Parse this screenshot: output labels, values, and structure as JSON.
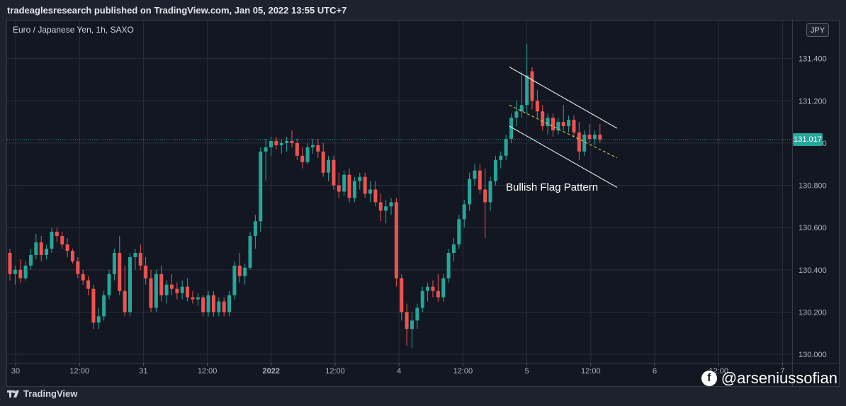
{
  "header": {
    "text": "tradeaglesresearch published on TradingView.com, Jan 05, 2022 13:55 UTC+7"
  },
  "symbol": "Euro / Japanese Yen, 1h, SAXO",
  "currency": "JPY",
  "current_price": "131.017",
  "footer": {
    "brand": "TradingView",
    "credit": "@arseniussofian"
  },
  "colors": {
    "up": "#26a69a",
    "down": "#ef5350",
    "grid": "#2a2e39",
    "pattern": "#ffffff",
    "midline": "#e8d44d",
    "price_line": "#26a69a"
  },
  "chart_data": {
    "type": "candlestick",
    "title": "Euro / Japanese Yen, 1h, SAXO",
    "x_tick_labels": [
      "30",
      "12:00",
      "31",
      "12:00",
      "2022",
      "12:00",
      "4",
      "12:00",
      "5",
      "12:00",
      "6",
      "12:00",
      "7"
    ],
    "y_tick_labels": [
      "130.000",
      "130.200",
      "130.400",
      "130.600",
      "130.800",
      "131.000",
      "131.200",
      "131.400"
    ],
    "ylim": [
      129.96,
      131.58
    ],
    "last_price": 131.017,
    "annotation": "Bullish Flag Pattern",
    "flag_channel": {
      "upper": [
        [
          131.36,
          131.07
        ]
      ],
      "lower": [
        [
          131.08,
          130.79
        ]
      ],
      "mid": [
        [
          131.18,
          130.93
        ]
      ]
    },
    "candles": [
      [
        130.48,
        130.5,
        130.35,
        130.38
      ],
      [
        130.38,
        130.42,
        130.33,
        130.4
      ],
      [
        130.4,
        130.45,
        130.34,
        130.36
      ],
      [
        130.36,
        130.44,
        130.35,
        130.42
      ],
      [
        130.42,
        130.5,
        130.4,
        130.47
      ],
      [
        130.47,
        130.57,
        130.45,
        130.53
      ],
      [
        130.53,
        130.56,
        130.44,
        130.47
      ],
      [
        130.47,
        130.52,
        130.45,
        130.5
      ],
      [
        130.5,
        130.6,
        130.48,
        130.58
      ],
      [
        130.58,
        130.6,
        130.53,
        130.56
      ],
      [
        130.56,
        130.58,
        130.5,
        130.52
      ],
      [
        130.52,
        130.55,
        130.46,
        130.49
      ],
      [
        130.49,
        130.5,
        130.43,
        130.44
      ],
      [
        130.44,
        130.46,
        130.36,
        130.38
      ],
      [
        130.38,
        130.4,
        130.33,
        130.35
      ],
      [
        130.35,
        130.37,
        130.28,
        130.31
      ],
      [
        130.31,
        130.33,
        130.12,
        130.15
      ],
      [
        130.15,
        130.22,
        130.12,
        130.18
      ],
      [
        130.18,
        130.3,
        130.16,
        130.28
      ],
      [
        130.28,
        130.4,
        130.26,
        130.38
      ],
      [
        130.38,
        130.5,
        130.35,
        130.48
      ],
      [
        130.48,
        130.56,
        130.28,
        130.3
      ],
      [
        130.3,
        130.42,
        130.18,
        130.2
      ],
      [
        130.2,
        130.48,
        130.18,
        130.46
      ],
      [
        130.46,
        130.5,
        130.4,
        130.48
      ],
      [
        130.48,
        130.52,
        130.4,
        130.42
      ],
      [
        130.42,
        130.46,
        130.33,
        130.36
      ],
      [
        130.36,
        130.4,
        130.2,
        130.22
      ],
      [
        130.22,
        130.4,
        130.2,
        130.38
      ],
      [
        130.38,
        130.42,
        130.25,
        130.28
      ],
      [
        130.28,
        130.35,
        130.24,
        130.33
      ],
      [
        130.33,
        130.38,
        130.28,
        130.31
      ],
      [
        130.31,
        130.34,
        130.26,
        130.29
      ],
      [
        130.29,
        130.35,
        130.26,
        130.32
      ],
      [
        130.32,
        130.36,
        130.25,
        130.27
      ],
      [
        130.27,
        130.3,
        130.24,
        130.26
      ],
      [
        130.26,
        130.29,
        130.23,
        130.27
      ],
      [
        130.27,
        130.28,
        130.18,
        130.2
      ],
      [
        130.2,
        130.3,
        130.18,
        130.28
      ],
      [
        130.28,
        130.3,
        130.18,
        130.2
      ],
      [
        130.2,
        130.27,
        130.18,
        130.25
      ],
      [
        130.25,
        130.27,
        130.18,
        130.2
      ],
      [
        130.2,
        130.3,
        130.18,
        130.28
      ],
      [
        130.28,
        130.44,
        130.26,
        130.42
      ],
      [
        130.42,
        130.48,
        130.34,
        130.37
      ],
      [
        130.37,
        130.43,
        130.33,
        130.41
      ],
      [
        130.41,
        130.58,
        130.4,
        130.56
      ],
      [
        130.56,
        130.66,
        130.5,
        130.63
      ],
      [
        130.63,
        130.98,
        130.58,
        130.96
      ],
      [
        130.96,
        131.02,
        130.82,
        130.98
      ],
      [
        130.98,
        131.03,
        130.94,
        131.01
      ],
      [
        131.01,
        131.03,
        130.97,
        130.99
      ],
      [
        130.99,
        131.02,
        130.95,
        131.0
      ],
      [
        131.0,
        131.03,
        130.96,
        131.01
      ],
      [
        131.01,
        131.06,
        130.98,
        131.0
      ],
      [
        131.0,
        131.02,
        130.92,
        130.94
      ],
      [
        130.94,
        130.98,
        130.88,
        130.91
      ],
      [
        130.91,
        131.0,
        130.9,
        130.98
      ],
      [
        130.98,
        131.02,
        130.95,
        130.99
      ],
      [
        130.99,
        131.02,
        130.93,
        130.96
      ],
      [
        130.96,
        131.0,
        130.84,
        130.86
      ],
      [
        130.86,
        130.94,
        130.82,
        130.92
      ],
      [
        130.92,
        130.94,
        130.78,
        130.8
      ],
      [
        130.8,
        130.86,
        130.74,
        130.77
      ],
      [
        130.77,
        130.87,
        130.75,
        130.85
      ],
      [
        130.85,
        130.88,
        130.72,
        130.74
      ],
      [
        130.74,
        130.84,
        130.72,
        130.82
      ],
      [
        130.82,
        130.86,
        130.78,
        130.84
      ],
      [
        130.84,
        130.86,
        130.74,
        130.76
      ],
      [
        130.76,
        130.82,
        130.72,
        130.78
      ],
      [
        130.78,
        130.82,
        130.7,
        130.72
      ],
      [
        130.72,
        130.76,
        130.63,
        130.68
      ],
      [
        130.68,
        130.73,
        130.62,
        130.7
      ],
      [
        130.7,
        130.74,
        130.66,
        130.72
      ],
      [
        130.72,
        130.74,
        130.32,
        130.36
      ],
      [
        130.36,
        130.38,
        130.16,
        130.2
      ],
      [
        130.2,
        130.24,
        130.04,
        130.12
      ],
      [
        130.12,
        130.2,
        130.03,
        130.16
      ],
      [
        130.16,
        130.24,
        130.12,
        130.22
      ],
      [
        130.22,
        130.32,
        130.2,
        130.3
      ],
      [
        130.3,
        130.34,
        130.25,
        130.32
      ],
      [
        130.32,
        130.35,
        130.27,
        130.3
      ],
      [
        130.3,
        130.38,
        130.25,
        130.27
      ],
      [
        130.27,
        130.38,
        130.25,
        130.36
      ],
      [
        130.36,
        130.5,
        130.34,
        130.48
      ],
      [
        130.48,
        130.55,
        130.44,
        130.52
      ],
      [
        130.52,
        130.66,
        130.5,
        130.64
      ],
      [
        130.64,
        130.73,
        130.6,
        130.71
      ],
      [
        130.71,
        130.86,
        130.68,
        130.83
      ],
      [
        130.83,
        130.9,
        130.8,
        130.87
      ],
      [
        130.87,
        130.9,
        130.76,
        130.78
      ],
      [
        130.78,
        130.88,
        130.55,
        130.72
      ],
      [
        130.72,
        130.84,
        130.68,
        130.82
      ],
      [
        130.82,
        130.94,
        130.8,
        130.92
      ],
      [
        130.92,
        130.96,
        130.88,
        130.94
      ],
      [
        130.94,
        131.04,
        130.92,
        131.02
      ],
      [
        131.02,
        131.14,
        131.0,
        131.12
      ],
      [
        131.12,
        131.2,
        131.08,
        131.15
      ],
      [
        131.15,
        131.34,
        131.12,
        131.18
      ],
      [
        131.18,
        131.47,
        131.14,
        131.32
      ],
      [
        131.34,
        131.36,
        131.16,
        131.2
      ],
      [
        131.2,
        131.25,
        131.12,
        131.15
      ],
      [
        131.15,
        131.18,
        131.06,
        131.08
      ],
      [
        131.08,
        131.14,
        131.04,
        131.12
      ],
      [
        131.12,
        131.14,
        131.03,
        131.06
      ],
      [
        131.06,
        131.12,
        131.04,
        131.1
      ],
      [
        131.1,
        131.18,
        131.06,
        131.08
      ],
      [
        131.08,
        131.13,
        131.05,
        131.11
      ],
      [
        131.11,
        131.13,
        131.03,
        131.05
      ],
      [
        131.05,
        131.1,
        130.92,
        130.96
      ],
      [
        130.96,
        131.06,
        130.94,
        131.04
      ],
      [
        131.04,
        131.09,
        131.0,
        131.02
      ],
      [
        131.02,
        131.06,
        130.99,
        131.04
      ],
      [
        131.04,
        131.09,
        131.0,
        131.017
      ]
    ]
  }
}
